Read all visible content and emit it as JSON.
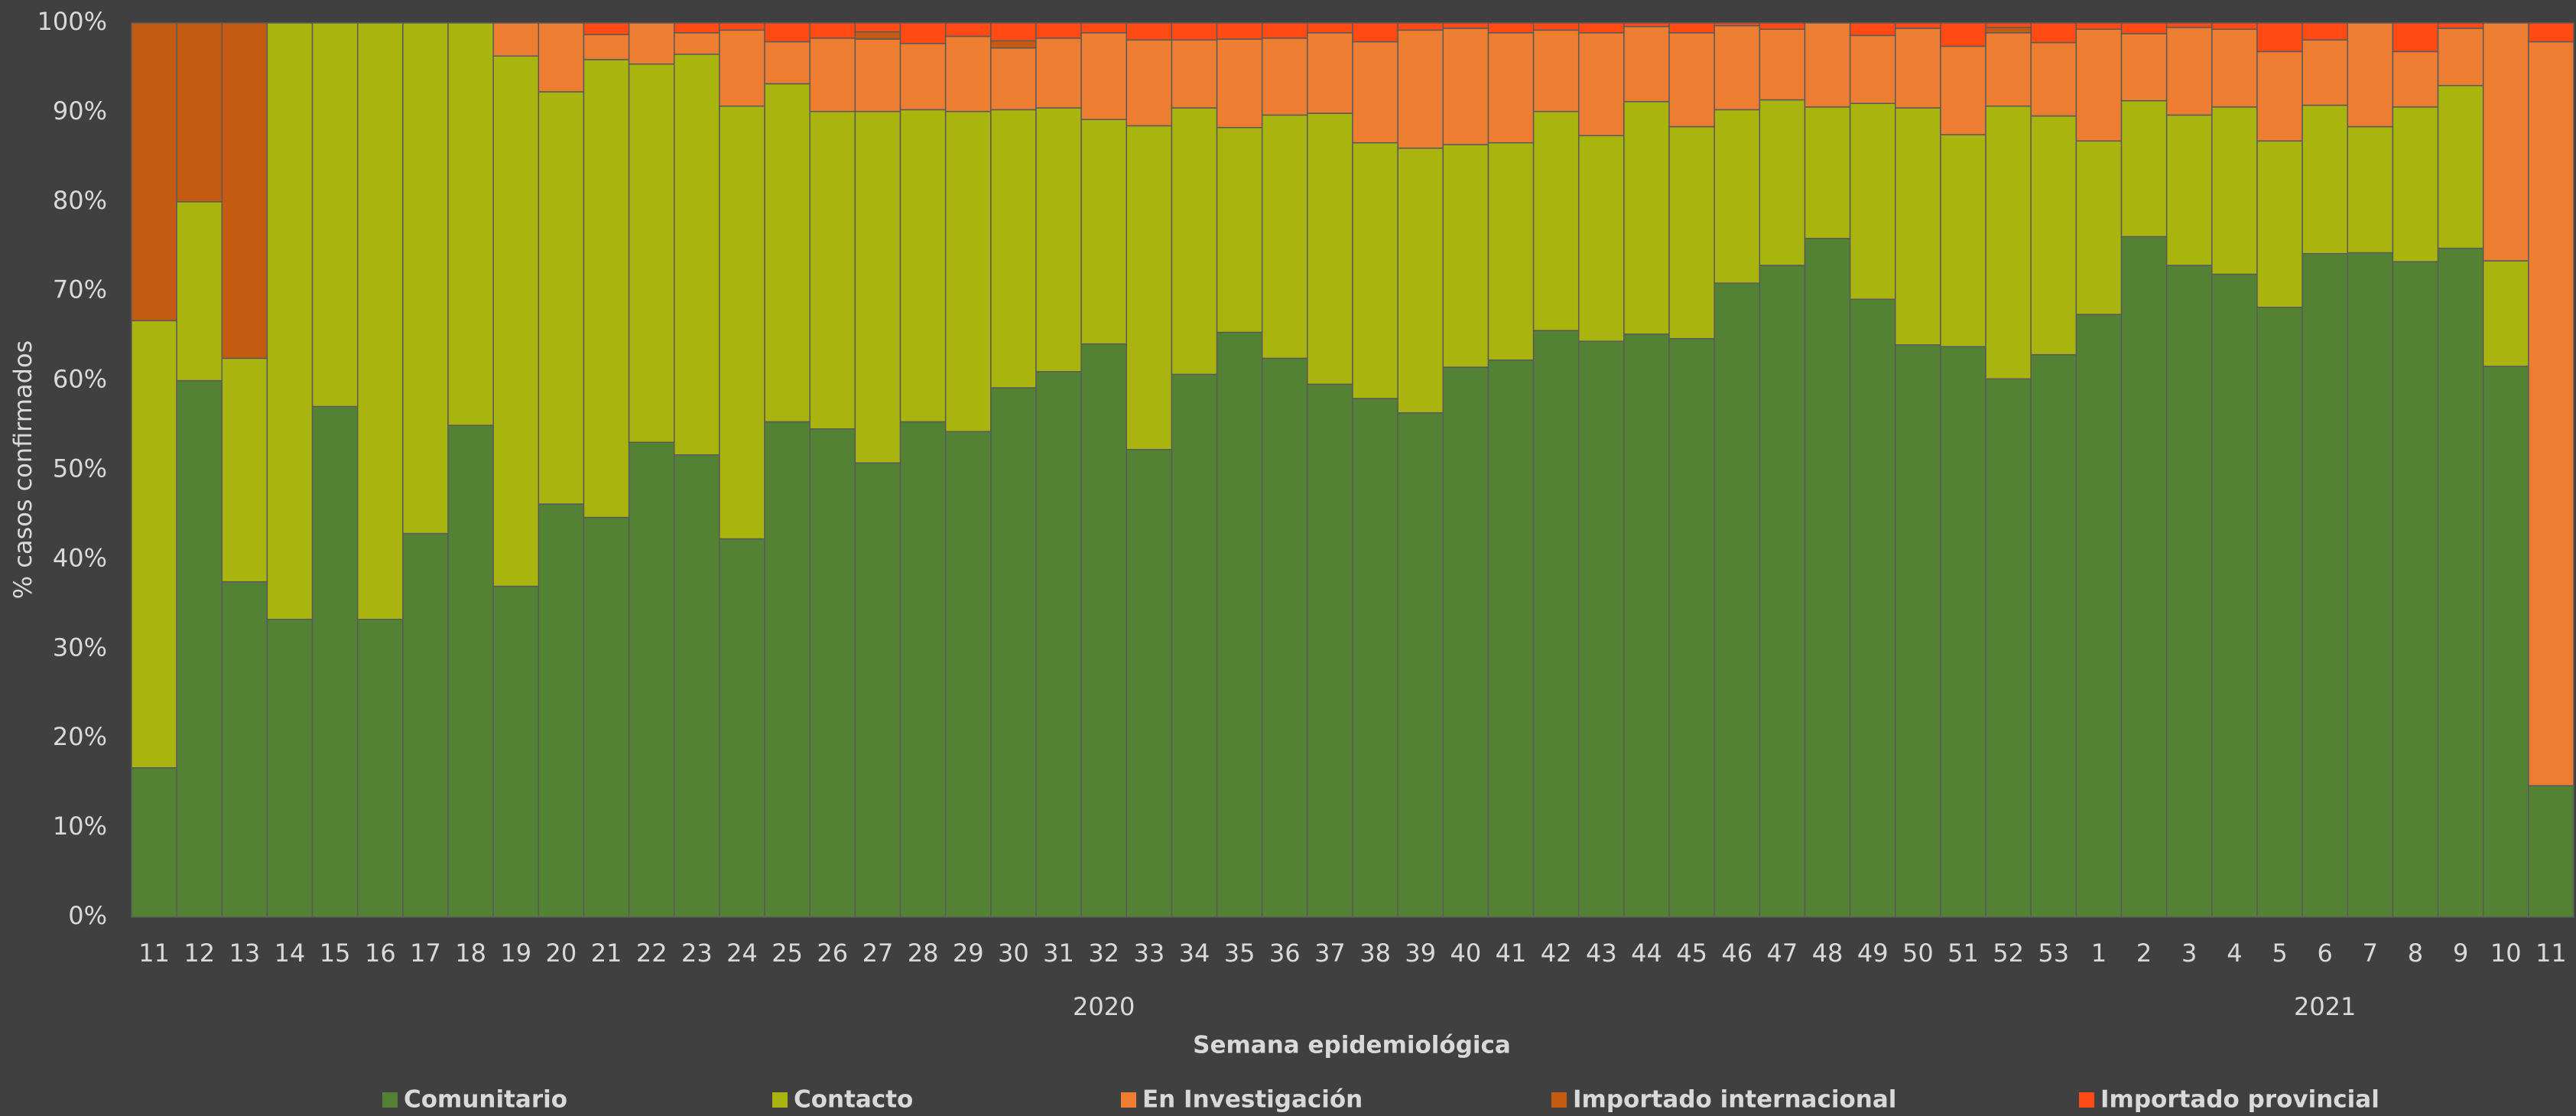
{
  "chart_data": {
    "type": "stacked_bar_percent",
    "y_axis_title": "% casos confirmados",
    "x_axis_title": "Semana epidemiológica",
    "category_groups": [
      {
        "label": "2020",
        "categories": [
          "11",
          "12",
          "13",
          "14",
          "15",
          "16",
          "17",
          "18",
          "19",
          "20",
          "21",
          "22",
          "23",
          "24",
          "25",
          "26",
          "27",
          "28",
          "29",
          "30",
          "31",
          "32",
          "33",
          "34",
          "35",
          "36",
          "37",
          "38",
          "39",
          "40",
          "41",
          "42",
          "43",
          "44",
          "45",
          "46",
          "47",
          "48",
          "49",
          "50",
          "51",
          "52",
          "53"
        ]
      },
      {
        "label": "2021",
        "categories": [
          "1",
          "2",
          "3",
          "4",
          "5",
          "6",
          "7",
          "8",
          "9",
          "10",
          "11"
        ]
      }
    ],
    "series": [
      {
        "name": "Comunitario",
        "color": "#548235",
        "values": [
          16.7,
          60,
          37.5,
          33.3,
          57.1,
          33.3,
          42.9,
          55,
          37,
          46.2,
          44.7,
          53.1,
          51.7,
          42.3,
          55.4,
          54.6,
          50.8,
          55.4,
          54.3,
          59.2,
          61,
          64.1,
          52.3,
          60.7,
          65.4,
          62.5,
          59.6,
          58,
          56.4,
          61.5,
          62.3,
          65.6,
          64.4,
          65.2,
          64.7,
          70.9,
          72.9,
          75.9,
          69.1,
          64,
          63.8,
          60.2,
          62.9,
          67.4,
          76.1,
          72.9,
          71.9,
          68.2,
          74.2,
          74.3,
          73.3,
          74.8,
          61.6,
          14.7
        ]
      },
      {
        "name": "Contacto",
        "color": "#a9b40f",
        "values": [
          50,
          20,
          25,
          66.7,
          42.9,
          66.7,
          57.1,
          45,
          59.3,
          46.1,
          51.2,
          42.3,
          44.8,
          48.4,
          37.8,
          35.5,
          39.3,
          34.9,
          35.8,
          31.1,
          29.5,
          25.1,
          36.2,
          29.8,
          22.9,
          27.2,
          30.3,
          28.6,
          29.6,
          24.9,
          24.3,
          24.5,
          23,
          26,
          23.7,
          19.4,
          18.5,
          14.7,
          21.9,
          26.5,
          23.7,
          30.5,
          26.7,
          19.4,
          15.2,
          16.8,
          18.7,
          18.6,
          16.6,
          14.1,
          17.3,
          18.2,
          11.8,
          0
        ]
      },
      {
        "name": "En Investigación",
        "color": "#ed7d31",
        "values": [
          0,
          0,
          0,
          0,
          0,
          0,
          0,
          0,
          3.7,
          7.7,
          2.8,
          4.6,
          2.4,
          8.5,
          4.7,
          8.2,
          8.1,
          7.4,
          8.4,
          6.9,
          7.8,
          9.7,
          9.6,
          7.6,
          9.9,
          8.6,
          9,
          11.3,
          13.2,
          13,
          12.3,
          9.1,
          11.5,
          8.4,
          10.5,
          9.4,
          7.9,
          9.4,
          7.6,
          8.9,
          9.9,
          8.2,
          8.2,
          12.5,
          7.5,
          9.8,
          8.7,
          10,
          7.3,
          11.6,
          6.2,
          6.4,
          26.6,
          83.2
        ]
      },
      {
        "name": "Importado internacional",
        "color": "#c55a11",
        "values": [
          33.3,
          20,
          37.5,
          0,
          0,
          0,
          0,
          0,
          0,
          0,
          0,
          0,
          0,
          0,
          0,
          0,
          0.8,
          0,
          0,
          0.8,
          0,
          0,
          0,
          0,
          0,
          0,
          0,
          0,
          0,
          0,
          0,
          0,
          0,
          0,
          0,
          0,
          0,
          0,
          0,
          0,
          0,
          0.6,
          0,
          0,
          0,
          0,
          0,
          0,
          0,
          0,
          0,
          0,
          0,
          0
        ]
      },
      {
        "name": "Importado provincial",
        "color": "#ff4a14",
        "values": [
          0,
          0,
          0,
          0,
          0,
          0,
          0,
          0,
          0,
          0,
          1.3,
          0,
          1.1,
          0.8,
          2.1,
          1.7,
          1,
          2.3,
          1.5,
          2,
          1.7,
          1.1,
          1.9,
          1.9,
          1.8,
          1.7,
          1.1,
          2.1,
          0.8,
          0.6,
          1.1,
          0.8,
          1.1,
          0.4,
          1.1,
          0.3,
          0.7,
          0,
          1.4,
          0.6,
          2.6,
          0.5,
          2.2,
          0.7,
          1.2,
          0.5,
          0.7,
          3.2,
          1.9,
          0,
          3.2,
          0.6,
          0,
          2.1
        ]
      }
    ],
    "ylim": [
      0,
      100
    ],
    "yticks": [
      {
        "value": 0,
        "label": "0%"
      },
      {
        "value": 10,
        "label": "10%"
      },
      {
        "value": 20,
        "label": "20%"
      },
      {
        "value": 30,
        "label": "30%"
      },
      {
        "value": 40,
        "label": "40%"
      },
      {
        "value": 50,
        "label": "50%"
      },
      {
        "value": 60,
        "label": "60%"
      },
      {
        "value": 70,
        "label": "70%"
      },
      {
        "value": 80,
        "label": "80%"
      },
      {
        "value": 90,
        "label": "90%"
      },
      {
        "value": 100,
        "label": "100%"
      }
    ],
    "grid": false,
    "legend_position": "bottom"
  }
}
